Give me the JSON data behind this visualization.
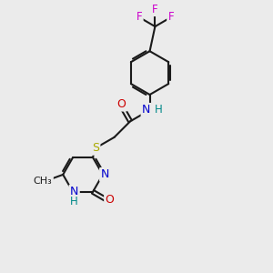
{
  "background_color": "#ebebeb",
  "bond_color": "#1a1a1a",
  "atom_colors": {
    "O": "#cc0000",
    "N": "#0000cc",
    "S": "#aaaa00",
    "F": "#cc00cc",
    "C": "#1a1a1a",
    "H": "#008888"
  },
  "figsize": [
    3.0,
    3.0
  ],
  "dpi": 100
}
